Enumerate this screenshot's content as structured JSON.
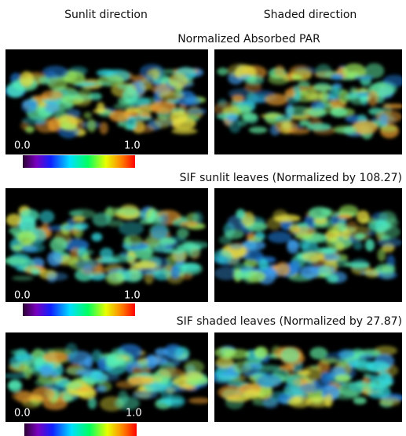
{
  "headers": {
    "left": "Sunlit direction",
    "right": "Shaded direction"
  },
  "rows": [
    {
      "title": "Normalized Absorbed PAR",
      "colorbar": {
        "min_label": "0.0",
        "max_label": "1.0"
      }
    },
    {
      "title": "SIF sunlit leaves (Normalized by 108.27)",
      "colorbar": {
        "min_label": "0.0",
        "max_label": "1.0"
      }
    },
    {
      "title": "SIF shaded leaves (Normalized by 27.87)",
      "colorbar": {
        "min_label": "0.0",
        "max_label": "1.0"
      }
    }
  ]
}
